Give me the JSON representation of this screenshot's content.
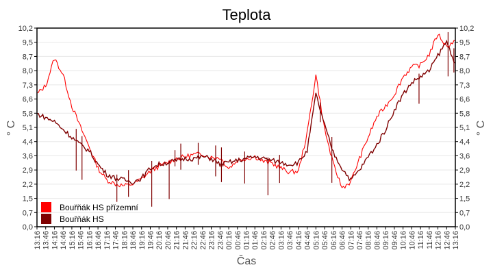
{
  "chart_data": {
    "type": "line",
    "title": "Teplota",
    "xlabel": "Čas",
    "ylabel": "° C",
    "ylim": [
      0.0,
      10.2
    ],
    "yticks": [
      "0,0",
      "0,7",
      "1,5",
      "2,2",
      "2,9",
      "3,6",
      "4,4",
      "5,1",
      "5,8",
      "6,6",
      "7,3",
      "8,0",
      "8,7",
      "9,5",
      "10,2"
    ],
    "grid": true,
    "legend_position": "lower-left inside",
    "x": [
      "13:16",
      "13:46",
      "14:16",
      "14:46",
      "15:16",
      "15:46",
      "16:16",
      "16:46",
      "17:16",
      "17:46",
      "18:16",
      "18:46",
      "19:16",
      "19:46",
      "20:16",
      "20:46",
      "21:16",
      "21:46",
      "22:16",
      "22:46",
      "23:16",
      "23:46",
      "00:16",
      "00:46",
      "01:16",
      "01:46",
      "02:16",
      "02:46",
      "03:16",
      "03:46",
      "04:16",
      "04:46",
      "05:16",
      "05:46",
      "06:16",
      "06:46",
      "07:16",
      "07:46",
      "08:16",
      "08:46",
      "09:16",
      "09:46",
      "10:16",
      "10:46",
      "11:16",
      "11:46",
      "12:16",
      "12:46",
      "13:16"
    ],
    "series": [
      {
        "name": "Bouřňák HS přízemní",
        "color": "#FF0000",
        "values": [
          6.8,
          7.25,
          8.65,
          7.8,
          6.2,
          5.1,
          4.1,
          3.0,
          2.4,
          2.2,
          2.1,
          2.2,
          2.45,
          2.85,
          3.1,
          3.3,
          3.5,
          3.6,
          3.7,
          3.75,
          3.55,
          3.55,
          3.0,
          3.4,
          3.5,
          3.6,
          3.35,
          3.25,
          3.0,
          2.8,
          2.85,
          4.8,
          7.8,
          5.0,
          3.2,
          2.0,
          2.3,
          3.5,
          4.6,
          5.65,
          6.2,
          6.8,
          7.7,
          8.2,
          8.3,
          8.85,
          9.9,
          9.25,
          9.55
        ]
      },
      {
        "name": "Bouřňák HS",
        "color": "#7F0000",
        "values": [
          5.8,
          5.6,
          5.4,
          5.0,
          4.6,
          4.2,
          3.9,
          3.2,
          2.7,
          2.5,
          2.4,
          2.3,
          2.5,
          3.0,
          3.2,
          3.3,
          3.4,
          3.5,
          3.5,
          3.6,
          3.5,
          3.2,
          3.3,
          3.4,
          3.5,
          3.6,
          3.5,
          3.4,
          3.3,
          3.2,
          3.3,
          3.9,
          6.8,
          5.2,
          3.8,
          3.0,
          2.4,
          2.9,
          3.6,
          4.2,
          5.0,
          6.0,
          6.8,
          7.4,
          7.7,
          8.0,
          8.8,
          9.5,
          8.4
        ]
      }
    ]
  },
  "legend": {
    "items": [
      {
        "label": "Bouřňák HS přízemní",
        "color": "#FF0000"
      },
      {
        "label": "Bouřňák HS",
        "color": "#7F0000"
      }
    ]
  }
}
